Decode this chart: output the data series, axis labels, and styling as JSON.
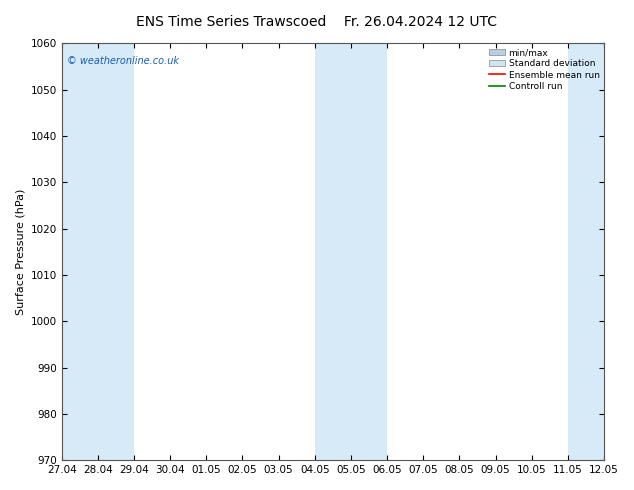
{
  "title_left": "ENS Time Series Trawscoed",
  "title_right": "Fr. 26.04.2024 12 UTC",
  "ylabel": "Surface Pressure (hPa)",
  "ylim": [
    970,
    1060
  ],
  "yticks": [
    970,
    980,
    990,
    1000,
    1010,
    1020,
    1030,
    1040,
    1050,
    1060
  ],
  "xtick_labels": [
    "27.04",
    "28.04",
    "29.04",
    "30.04",
    "01.05",
    "02.05",
    "03.05",
    "04.05",
    "05.05",
    "06.05",
    "07.05",
    "08.05",
    "09.05",
    "10.05",
    "11.05",
    "12.05"
  ],
  "copyright": "© weatheronline.co.uk",
  "bg_color": "#ffffff",
  "plot_bg": "#ffffff",
  "band_color": "#d6eaf8",
  "band_ranges": [
    [
      0,
      2
    ],
    [
      7,
      9
    ],
    [
      14,
      15
    ]
  ],
  "legend_items": [
    {
      "label": "min/max",
      "type": "rect",
      "color": "#b8cfe0"
    },
    {
      "label": "Standard deviation",
      "type": "rect",
      "color": "#d0e5f2"
    },
    {
      "label": "Ensemble mean run",
      "type": "line",
      "color": "red"
    },
    {
      "label": "Controll run",
      "type": "line",
      "color": "green"
    }
  ],
  "title_fontsize": 10,
  "axis_fontsize": 8,
  "tick_fontsize": 7.5,
  "ylabel_fontsize": 8
}
